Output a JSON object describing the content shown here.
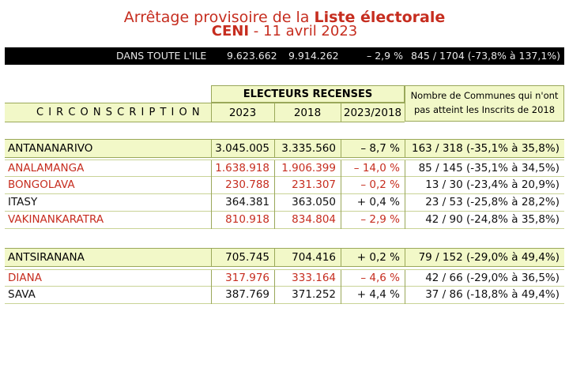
{
  "title": {
    "line1_prefix": "Arrêtage provisoire de la ",
    "line1_bold": "Liste électorale",
    "line2_bold": "CENI",
    "line2_rest": " - 11 avril 2023"
  },
  "summary": {
    "label": "DANS TOUTE L'ILE",
    "v2023": "9.623.662",
    "v2018": "9.914.262",
    "variation": "– 2,9 %",
    "communes": "845 / 1704 (-73,8% à 137,1%)"
  },
  "header": {
    "group": "ELECTEURS RECENSES",
    "circ": "C I R C O N S C R I P T I O N",
    "c2023": "2023",
    "c2018": "2018",
    "cvar": "2023/2018",
    "communes_line1": "Nombre de Communes qui n'ont",
    "communes_line2": "pas atteint les Inscrits de 2018"
  },
  "sections": [
    {
      "province": {
        "name": "ANTANANARIVO",
        "v2023": "3.045.005",
        "v2018": "3.335.560",
        "variation": "– 8,7 %",
        "communes": "163 / 318 (-35,1% à 35,8%)"
      },
      "regions": [
        {
          "name": "ANALAMANGA",
          "v2023": "1.638.918",
          "v2018": "1.906.399",
          "variation": "– 14,0 %",
          "communes": "85 / 145 (-35,1% à 34,5%)",
          "color": "#c62d1f"
        },
        {
          "name": "BONGOLAVA",
          "v2023": "230.788",
          "v2018": "231.307",
          "variation": "– 0,2 %",
          "communes": "13 / 30 (-23,4% à 20,9%)",
          "color": "#c62d1f"
        },
        {
          "name": "ITASY",
          "v2023": "364.381",
          "v2018": "363.050",
          "variation": "+ 0,4 %",
          "communes": "23 / 53 (-25,8% à 28,2%)",
          "color": "#111111"
        },
        {
          "name": "VAKINANKARATRA",
          "v2023": "810.918",
          "v2018": "834.804",
          "variation": "– 2,9 %",
          "communes": "42 / 90 (-24,8% à 35,8%)",
          "color": "#c62d1f"
        }
      ]
    },
    {
      "province": {
        "name": "ANTSIRANANA",
        "v2023": "705.745",
        "v2018": "704.416",
        "variation": "+ 0,2 %",
        "communes": "79 / 152 (-29,0% à 49,4%)"
      },
      "regions": [
        {
          "name": "DIANA",
          "v2023": "317.976",
          "v2018": "333.164",
          "variation": "– 4,6 %",
          "communes": "42 / 66 (-29,0% à 36,5%)",
          "color": "#c62d1f"
        },
        {
          "name": "SAVA",
          "v2023": "387.769",
          "v2018": "371.252",
          "variation": "+ 4,4 %",
          "communes": "37 / 86 (-18,8% à 49,4%)",
          "color": "#111111"
        }
      ]
    }
  ]
}
